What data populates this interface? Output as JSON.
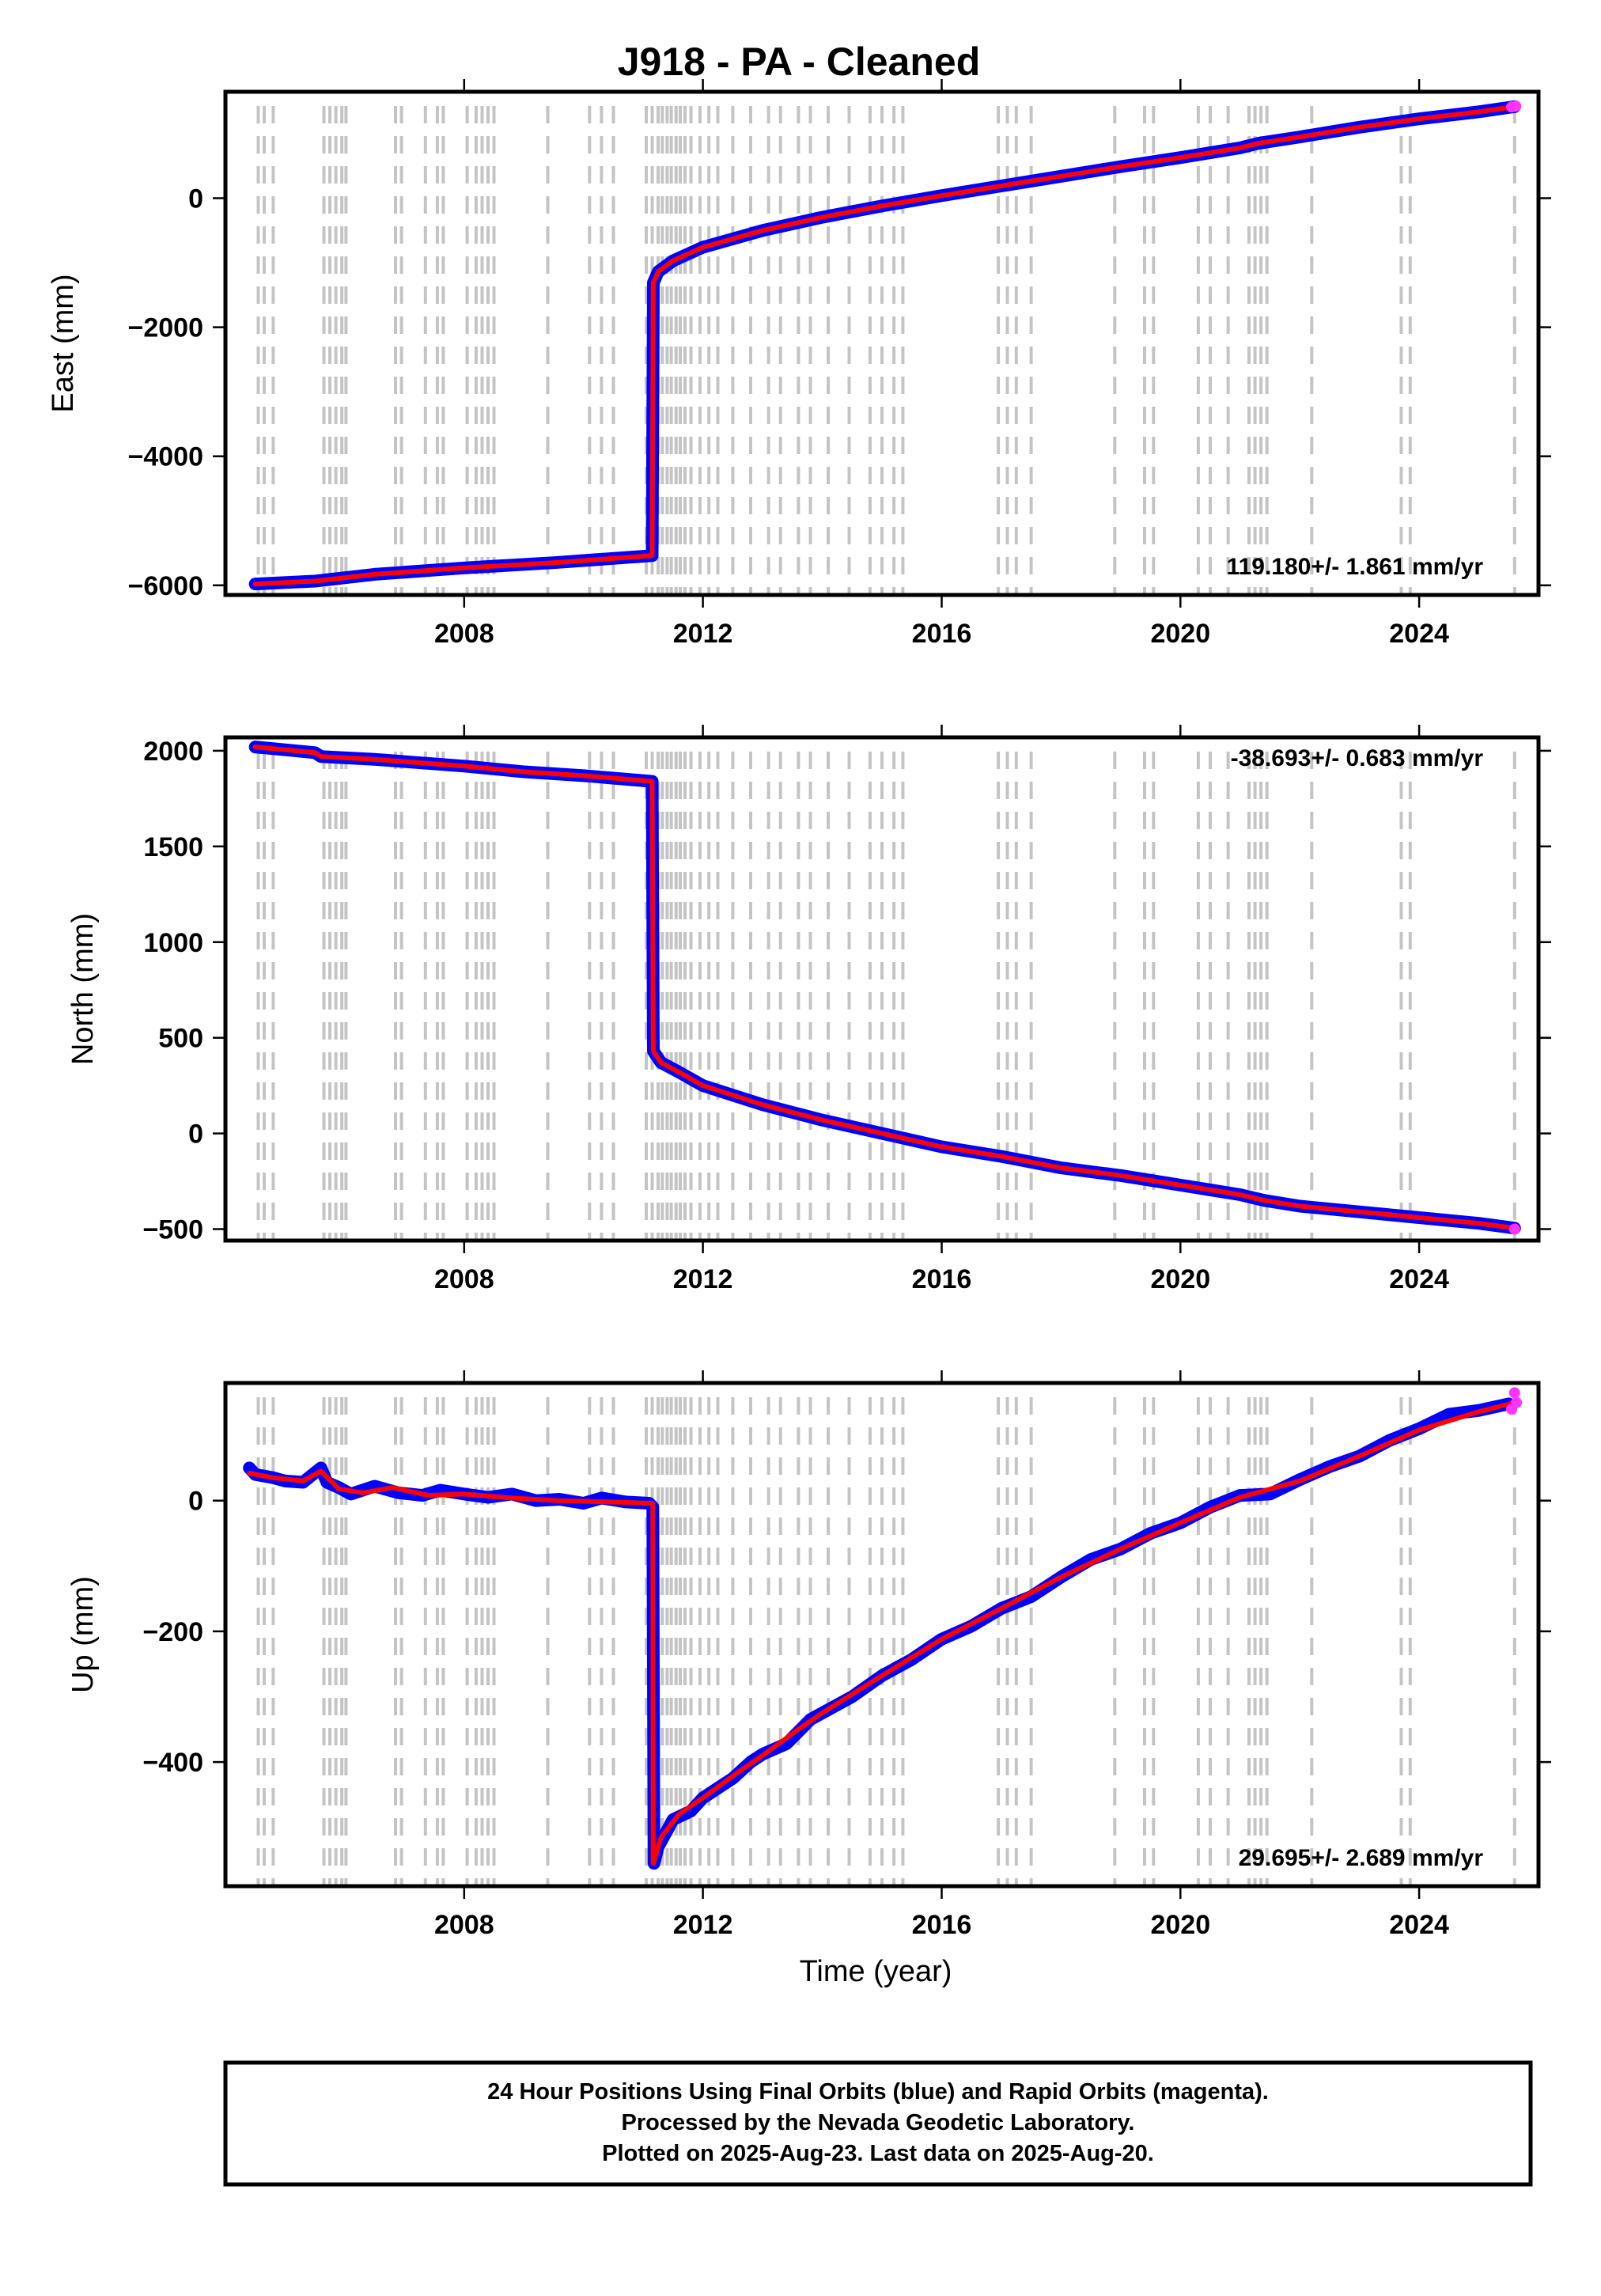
{
  "title": "J918  - PA - Cleaned",
  "chart_data": [
    {
      "type": "line",
      "ylabel": "East (mm)",
      "xlabel": "",
      "xlim": [
        2004.0,
        2026.0
      ],
      "ylim": [
        -6150,
        1650
      ],
      "yticks": [
        -6000,
        -4000,
        -2000,
        0
      ],
      "xticks": [
        2008,
        2012,
        2016,
        2020,
        2024
      ],
      "rate_label": "119.180+/- 1.861 mm/yr",
      "series": [
        {
          "key": "model",
          "color": "#ff0000",
          "points": [
            [
              2004.5,
              -5980
            ],
            [
              2005.5,
              -5935
            ],
            [
              2006.5,
              -5830
            ],
            [
              2008.0,
              -5730
            ],
            [
              2009.5,
              -5650
            ],
            [
              2011.15,
              -5540
            ],
            [
              2011.17,
              -1310
            ],
            [
              2011.25,
              -1140
            ],
            [
              2011.5,
              -970
            ],
            [
              2012.0,
              -760
            ],
            [
              2013.0,
              -500
            ],
            [
              2014.0,
              -295
            ],
            [
              2015.0,
              -120
            ],
            [
              2016.0,
              40
            ],
            [
              2017.0,
              190
            ],
            [
              2018.0,
              340
            ],
            [
              2019.0,
              490
            ],
            [
              2020.0,
              630
            ],
            [
              2021.0,
              780
            ],
            [
              2021.3,
              850
            ],
            [
              2022.0,
              950
            ],
            [
              2023.0,
              1100
            ],
            [
              2024.0,
              1230
            ],
            [
              2025.0,
              1340
            ],
            [
              2025.6,
              1420
            ]
          ]
        }
      ],
      "rapid_points": [
        [
          2025.55,
          1415
        ],
        [
          2025.62,
          1425
        ]
      ]
    },
    {
      "type": "line",
      "ylabel": "North (mm)",
      "xlabel": "",
      "xlim": [
        2004.0,
        2026.0
      ],
      "ylim": [
        -560,
        2070
      ],
      "yticks": [
        -500,
        0,
        500,
        1000,
        1500,
        2000
      ],
      "xticks": [
        2008,
        2012,
        2016,
        2020,
        2024
      ],
      "rate_label": "-38.693+/- 0.683 mm/yr",
      "series": [
        {
          "key": "model",
          "color": "#ff0000",
          "points": [
            [
              2004.5,
              2020
            ],
            [
              2005.0,
              2005
            ],
            [
              2005.5,
              1990
            ],
            [
              2005.6,
              1970
            ],
            [
              2006.5,
              1955
            ],
            [
              2008.0,
              1920
            ],
            [
              2009.0,
              1890
            ],
            [
              2010.0,
              1870
            ],
            [
              2011.15,
              1840
            ],
            [
              2011.17,
              430
            ],
            [
              2011.3,
              370
            ],
            [
              2011.6,
              320
            ],
            [
              2012.0,
              250
            ],
            [
              2012.5,
              200
            ],
            [
              2013.0,
              150
            ],
            [
              2014.0,
              70
            ],
            [
              2015.0,
              0
            ],
            [
              2016.0,
              -70
            ],
            [
              2017.0,
              -120
            ],
            [
              2018.0,
              -180
            ],
            [
              2019.0,
              -220
            ],
            [
              2020.0,
              -270
            ],
            [
              2021.0,
              -320
            ],
            [
              2021.4,
              -350
            ],
            [
              2022.0,
              -380
            ],
            [
              2023.0,
              -410
            ],
            [
              2024.0,
              -440
            ],
            [
              2025.0,
              -470
            ],
            [
              2025.6,
              -495
            ]
          ]
        }
      ],
      "rapid_points": [
        [
          2025.6,
          -500
        ]
      ]
    },
    {
      "type": "line",
      "ylabel": "Up (mm)",
      "xlabel": "Time (year)",
      "xlim": [
        2004.0,
        2026.0
      ],
      "ylim": [
        -590,
        180
      ],
      "yticks": [
        -400,
        -200,
        0
      ],
      "xticks": [
        2008,
        2012,
        2016,
        2020,
        2024
      ],
      "rate_label": "29.695+/- 2.689 mm/yr",
      "series": [
        {
          "key": "final",
          "color": "#0000ff",
          "points": [
            [
              2004.4,
              50
            ],
            [
              2004.5,
              40
            ],
            [
              2004.8,
              35
            ],
            [
              2005.0,
              30
            ],
            [
              2005.3,
              28
            ],
            [
              2005.6,
              50
            ],
            [
              2005.7,
              28
            ],
            [
              2005.9,
              20
            ],
            [
              2006.1,
              10
            ],
            [
              2006.5,
              22
            ],
            [
              2006.9,
              12
            ],
            [
              2007.3,
              8
            ],
            [
              2007.6,
              16
            ],
            [
              2008.0,
              10
            ],
            [
              2008.4,
              5
            ],
            [
              2008.8,
              10
            ],
            [
              2009.2,
              0
            ],
            [
              2009.6,
              2
            ],
            [
              2010.0,
              -4
            ],
            [
              2010.3,
              4
            ],
            [
              2010.7,
              -2
            ],
            [
              2011.1,
              -4
            ],
            [
              2011.16,
              -10
            ],
            [
              2011.18,
              -555
            ],
            [
              2011.25,
              -530
            ],
            [
              2011.5,
              -488
            ],
            [
              2011.8,
              -475
            ],
            [
              2012.0,
              -455
            ],
            [
              2012.5,
              -425
            ],
            [
              2012.8,
              -400
            ],
            [
              2013.0,
              -388
            ],
            [
              2013.4,
              -372
            ],
            [
              2013.8,
              -335
            ],
            [
              2014.0,
              -325
            ],
            [
              2014.5,
              -300
            ],
            [
              2015.0,
              -268
            ],
            [
              2015.5,
              -243
            ],
            [
              2016.0,
              -212
            ],
            [
              2016.5,
              -192
            ],
            [
              2017.0,
              -165
            ],
            [
              2017.5,
              -147
            ],
            [
              2018.0,
              -117
            ],
            [
              2018.5,
              -90
            ],
            [
              2019.0,
              -74
            ],
            [
              2019.5,
              -50
            ],
            [
              2020.0,
              -34
            ],
            [
              2020.5,
              -10
            ],
            [
              2021.0,
              8
            ],
            [
              2021.5,
              10
            ],
            [
              2022.0,
              32
            ],
            [
              2022.5,
              52
            ],
            [
              2023.0,
              68
            ],
            [
              2023.5,
              92
            ],
            [
              2024.0,
              110
            ],
            [
              2024.5,
              132
            ],
            [
              2025.0,
              138
            ],
            [
              2025.5,
              148
            ]
          ]
        },
        {
          "key": "model",
          "color": "#ff0000",
          "points": [
            [
              2004.4,
              42
            ],
            [
              2004.8,
              35
            ],
            [
              2005.3,
              30
            ],
            [
              2005.6,
              45
            ],
            [
              2005.9,
              18
            ],
            [
              2006.3,
              12
            ],
            [
              2006.8,
              20
            ],
            [
              2007.4,
              8
            ],
            [
              2008.0,
              10
            ],
            [
              2008.8,
              4
            ],
            [
              2009.6,
              0
            ],
            [
              2010.4,
              -2
            ],
            [
              2011.16,
              -4
            ],
            [
              2011.17,
              -555
            ],
            [
              2011.3,
              -515
            ],
            [
              2011.6,
              -480
            ],
            [
              2012.0,
              -455
            ],
            [
              2012.6,
              -415
            ],
            [
              2013.0,
              -390
            ],
            [
              2013.6,
              -350
            ],
            [
              2014.0,
              -325
            ],
            [
              2015.0,
              -268
            ],
            [
              2016.0,
              -212
            ],
            [
              2017.0,
              -165
            ],
            [
              2018.0,
              -117
            ],
            [
              2019.0,
              -74
            ],
            [
              2020.0,
              -34
            ],
            [
              2021.0,
              5
            ],
            [
              2022.0,
              30
            ],
            [
              2023.0,
              68
            ],
            [
              2024.0,
              108
            ],
            [
              2025.0,
              136
            ],
            [
              2025.6,
              150
            ]
          ]
        }
      ],
      "rapid_points": [
        [
          2025.55,
          140
        ],
        [
          2025.6,
          165
        ],
        [
          2025.63,
          150
        ]
      ]
    }
  ],
  "event_years": [
    2004.55,
    2004.65,
    2004.8,
    2005.65,
    2005.75,
    2005.85,
    2005.95,
    2006.02,
    2006.85,
    2006.95,
    2007.35,
    2007.55,
    2007.65,
    2008.05,
    2008.2,
    2008.3,
    2008.4,
    2008.5,
    2009.4,
    2010.1,
    2010.3,
    2010.5,
    2011.05,
    2011.15,
    2011.25,
    2011.32,
    2011.4,
    2011.47,
    2011.55,
    2011.62,
    2011.7,
    2011.8,
    2011.95,
    2012.1,
    2012.25,
    2012.5,
    2012.8,
    2013.1,
    2013.3,
    2013.6,
    2013.8,
    2014.1,
    2014.45,
    2014.8,
    2015.0,
    2015.2,
    2015.35,
    2016.95,
    2017.1,
    2017.25,
    2017.5,
    2018.9,
    2019.4,
    2019.55,
    2020.3,
    2020.5,
    2020.8,
    2021.15,
    2021.25,
    2021.35,
    2021.45,
    2022.2,
    2023.7,
    2023.85,
    2025.6
  ],
  "footer": {
    "line1": "24 Hour Positions Using Final Orbits (blue) and Rapid Orbits (magenta).",
    "line2": "Processed by the Nevada Geodetic Laboratory.",
    "line3": "Plotted on 2025-Aug-23. Last data on 2025-Aug-20."
  }
}
